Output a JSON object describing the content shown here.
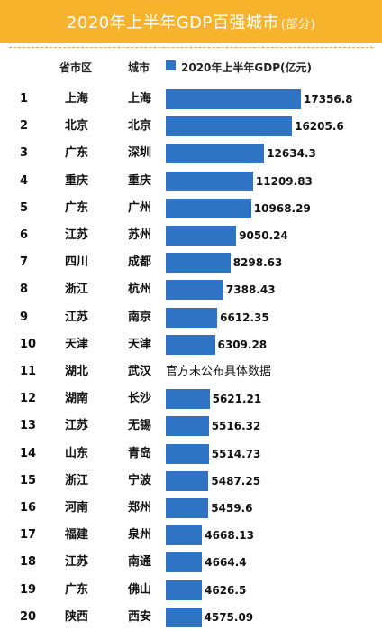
{
  "title_main": "2020年上半年GDP百强城市",
  "title_sub": "(部分)",
  "header": {
    "province": "省市区",
    "city": "城市",
    "legend": "2020年上半年GDP(亿元)"
  },
  "colors": {
    "banner": "#f7b32b",
    "bar": "#2f74c4"
  },
  "chart_data": {
    "type": "bar",
    "orientation": "horizontal",
    "title": "2020年上半年GDP百强城市(部分)",
    "series": [
      {
        "name": "2020年上半年GDP(亿元)"
      }
    ],
    "rows": [
      {
        "rank": "1",
        "province": "上海",
        "city": "上海",
        "value": 17356.8,
        "label": "17356.8"
      },
      {
        "rank": "2",
        "province": "北京",
        "city": "北京",
        "value": 16205.6,
        "label": "16205.6"
      },
      {
        "rank": "3",
        "province": "广东",
        "city": "深圳",
        "value": 12634.3,
        "label": "12634.3"
      },
      {
        "rank": "4",
        "province": "重庆",
        "city": "重庆",
        "value": 11209.83,
        "label": "11209.83"
      },
      {
        "rank": "5",
        "province": "广东",
        "city": "广州",
        "value": 10968.29,
        "label": "10968.29"
      },
      {
        "rank": "6",
        "province": "江苏",
        "city": "苏州",
        "value": 9050.24,
        "label": "9050.24"
      },
      {
        "rank": "7",
        "province": "四川",
        "city": "成都",
        "value": 8298.63,
        "label": "8298.63"
      },
      {
        "rank": "8",
        "province": "浙江",
        "city": "杭州",
        "value": 7388.43,
        "label": "7388.43"
      },
      {
        "rank": "9",
        "province": "江苏",
        "city": "南京",
        "value": 6612.35,
        "label": "6612.35"
      },
      {
        "rank": "10",
        "province": "天津",
        "city": "天津",
        "value": 6309.28,
        "label": "6309.28"
      },
      {
        "rank": "11",
        "province": "湖北",
        "city": "武汉",
        "value": null,
        "label": "官方未公布具体数据"
      },
      {
        "rank": "12",
        "province": "湖南",
        "city": "长沙",
        "value": 5621.21,
        "label": "5621.21"
      },
      {
        "rank": "13",
        "province": "江苏",
        "city": "无锡",
        "value": 5516.32,
        "label": "5516.32"
      },
      {
        "rank": "14",
        "province": "山东",
        "city": "青岛",
        "value": 5514.73,
        "label": "5514.73"
      },
      {
        "rank": "15",
        "province": "浙江",
        "city": "宁波",
        "value": 5487.25,
        "label": "5487.25"
      },
      {
        "rank": "16",
        "province": "河南",
        "city": "郑州",
        "value": 5459.6,
        "label": "5459.6"
      },
      {
        "rank": "17",
        "province": "福建",
        "city": "泉州",
        "value": 4668.13,
        "label": "4668.13"
      },
      {
        "rank": "18",
        "province": "江苏",
        "city": "南通",
        "value": 4664.4,
        "label": "4664.4"
      },
      {
        "rank": "19",
        "province": "广东",
        "city": "佛山",
        "value": 4626.5,
        "label": "4626.5"
      },
      {
        "rank": "20",
        "province": "陕西",
        "city": "西安",
        "value": 4575.09,
        "label": "4575.09"
      }
    ]
  }
}
